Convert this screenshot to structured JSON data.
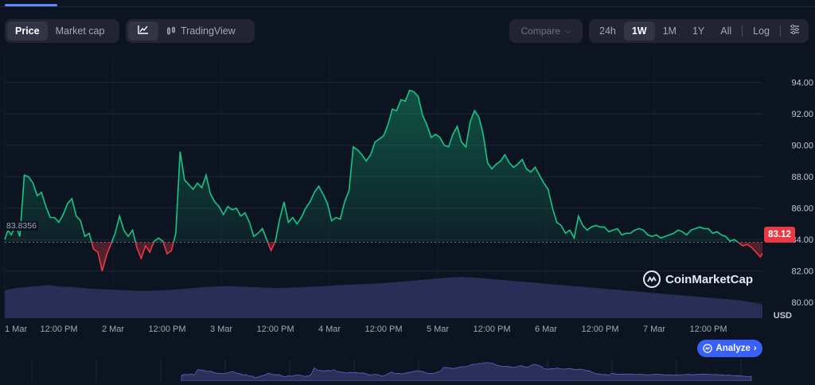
{
  "toolbar": {
    "price_label": "Price",
    "marketcap_label": "Market cap",
    "tradingview_label": "TradingView",
    "compare_label": "Compare",
    "ranges": [
      "24h",
      "1W",
      "1M",
      "1Y",
      "All"
    ],
    "selected_range": "1W",
    "log_label": "Log"
  },
  "brand": "CoinMarketCap",
  "analyze_label": "Analyze",
  "reference_price": "83.8356",
  "current_price": "83.12",
  "colors": {
    "up": "#16c784",
    "down": "#ea3943",
    "accent": "#3861fb",
    "volume": "#2c2f5a",
    "background": "#0d1421"
  },
  "chart_data": {
    "type": "line",
    "title": "",
    "xlabel": "",
    "ylabel": "USD",
    "ylim": [
      79,
      95.7
    ],
    "reference_value": 83.8356,
    "x_ticks": [
      "1 Mar",
      "12:00 PM",
      "2 Mar",
      "12:00 PM",
      "3 Mar",
      "12:00 PM",
      "4 Mar",
      "12:00 PM",
      "5 Mar",
      "12:00 PM",
      "6 Mar",
      "12:00 PM",
      "7 Mar",
      "12:00 PM"
    ],
    "y_ticks": [
      "80.00",
      "82.00",
      "84.00",
      "86.00",
      "88.00",
      "90.00",
      "92.00",
      "94.00"
    ],
    "x_range": [
      0,
      7
    ],
    "series": [
      {
        "x": [
          0,
          0.03,
          0.06,
          0.1,
          0.14,
          0.18,
          0.22,
          0.26,
          0.3,
          0.34,
          0.38,
          0.42,
          0.46,
          0.5,
          0.54,
          0.58,
          0.62,
          0.66,
          0.7,
          0.74,
          0.78,
          0.82,
          0.86,
          0.9,
          0.94,
          0.98,
          1.02,
          1.06,
          1.1,
          1.14,
          1.18,
          1.22,
          1.26,
          1.3,
          1.34,
          1.38,
          1.42,
          1.46,
          1.5,
          1.54,
          1.58,
          1.62,
          1.66,
          1.7,
          1.74,
          1.78,
          1.82,
          1.86,
          1.9,
          1.94,
          1.98,
          2.02,
          2.06,
          2.1,
          2.14,
          2.18,
          2.22,
          2.26,
          2.3,
          2.34,
          2.38,
          2.42,
          2.46,
          2.5,
          2.54,
          2.58,
          2.62,
          2.66,
          2.7,
          2.74,
          2.78,
          2.82,
          2.86,
          2.9,
          2.94,
          2.98,
          3.02,
          3.06,
          3.1,
          3.14,
          3.18,
          3.22,
          3.26,
          3.3,
          3.34,
          3.38,
          3.42,
          3.46,
          3.5,
          3.54,
          3.58,
          3.62,
          3.66,
          3.7,
          3.74,
          3.78,
          3.82,
          3.86,
          3.9,
          3.94,
          3.98,
          4.02,
          4.06,
          4.1,
          4.14,
          4.18,
          4.22,
          4.26,
          4.3,
          4.34,
          4.38,
          4.42,
          4.46,
          4.5,
          4.54,
          4.58,
          4.62,
          4.66,
          4.7,
          4.74,
          4.78,
          4.82,
          4.86,
          4.9,
          4.94,
          4.98,
          5.02,
          5.06,
          5.1,
          5.14,
          5.18,
          5.22,
          5.26,
          5.3,
          5.34,
          5.38,
          5.42,
          5.46,
          5.5,
          5.54,
          5.58,
          5.62,
          5.66,
          5.7,
          5.74,
          5.78,
          5.82,
          5.86,
          5.9,
          5.94,
          5.98,
          6.02,
          6.06,
          6.1,
          6.14,
          6.18,
          6.22,
          6.26,
          6.3,
          6.34,
          6.38,
          6.42,
          6.46,
          6.5,
          6.54,
          6.58,
          6.62,
          6.66,
          6.7,
          6.74,
          6.78,
          6.82,
          6.86,
          6.9,
          6.94,
          6.98,
          7.0
        ],
        "values": [
          84.0,
          84.6,
          84.3,
          84.9,
          84.2,
          88.1,
          88.0,
          87.6,
          86.8,
          87.0,
          86.1,
          85.4,
          85.4,
          85.1,
          85.6,
          86.3,
          86.6,
          85.5,
          85.2,
          84.2,
          84.4,
          83.4,
          83.2,
          82.0,
          83.0,
          83.7,
          84.4,
          85.5,
          84.6,
          84.2,
          84.6,
          83.5,
          82.8,
          83.6,
          83.2,
          83.9,
          84.1,
          83.9,
          83.1,
          83.3,
          84.4,
          89.6,
          87.8,
          87.5,
          87.2,
          87.6,
          87.3,
          88.1,
          86.9,
          86.4,
          86.1,
          85.6,
          86.1,
          85.9,
          86.0,
          85.5,
          85.7,
          85.1,
          84.2,
          84.4,
          84.7,
          84.0,
          83.3,
          83.9,
          85.3,
          86.4,
          85.1,
          85.4,
          85.0,
          85.4,
          86.0,
          86.4,
          87.0,
          87.4,
          86.9,
          86.3,
          85.2,
          85.4,
          85.3,
          86.4,
          87.1,
          89.9,
          89.7,
          89.4,
          89.0,
          89.4,
          90.2,
          90.4,
          90.6,
          91.3,
          92.3,
          92.2,
          92.9,
          92.8,
          93.5,
          93.4,
          93.1,
          91.9,
          91.3,
          90.5,
          90.7,
          90.5,
          90.0,
          89.9,
          90.7,
          91.2,
          90.2,
          89.9,
          91.5,
          92.2,
          91.8,
          90.7,
          88.9,
          88.5,
          88.8,
          89.0,
          89.4,
          88.9,
          88.6,
          88.8,
          89.1,
          88.5,
          88.3,
          88.6,
          88.1,
          87.6,
          87.2,
          86.0,
          85.1,
          84.9,
          84.4,
          84.6,
          84.1,
          85.5,
          84.9,
          84.6,
          84.8,
          84.9,
          84.8,
          84.8,
          84.5,
          84.6,
          84.7,
          84.3,
          84.4,
          84.4,
          84.6,
          84.7,
          84.6,
          84.3,
          84.2,
          84.3,
          84.1,
          84.2,
          84.3,
          84.4,
          84.6,
          84.5,
          84.3,
          84.6,
          84.7,
          84.8,
          84.7,
          84.7,
          84.4,
          84.5,
          84.3,
          84.2,
          83.9,
          84.0,
          83.8,
          83.6,
          83.7,
          83.5,
          83.2,
          82.9,
          83.12
        ]
      }
    ],
    "volume": [
      0.55,
      0.6,
      0.62,
      0.64,
      0.66,
      0.63,
      0.62,
      0.6,
      0.58,
      0.57,
      0.56,
      0.55,
      0.54,
      0.54,
      0.55,
      0.56,
      0.58,
      0.6,
      0.62,
      0.63,
      0.64,
      0.63,
      0.62,
      0.61,
      0.6,
      0.6,
      0.61,
      0.62,
      0.63,
      0.64,
      0.66,
      0.67,
      0.68,
      0.69,
      0.7,
      0.72,
      0.74,
      0.76,
      0.78,
      0.8,
      0.82,
      0.83,
      0.82,
      0.8,
      0.78,
      0.76,
      0.74,
      0.72,
      0.7,
      0.68,
      0.66,
      0.64,
      0.62,
      0.6,
      0.58,
      0.56,
      0.54,
      0.52,
      0.5,
      0.48,
      0.46,
      0.44,
      0.42,
      0.4,
      0.38,
      0.36,
      0.34,
      0.3,
      0.25
    ],
    "legend": "none",
    "grid": true
  }
}
